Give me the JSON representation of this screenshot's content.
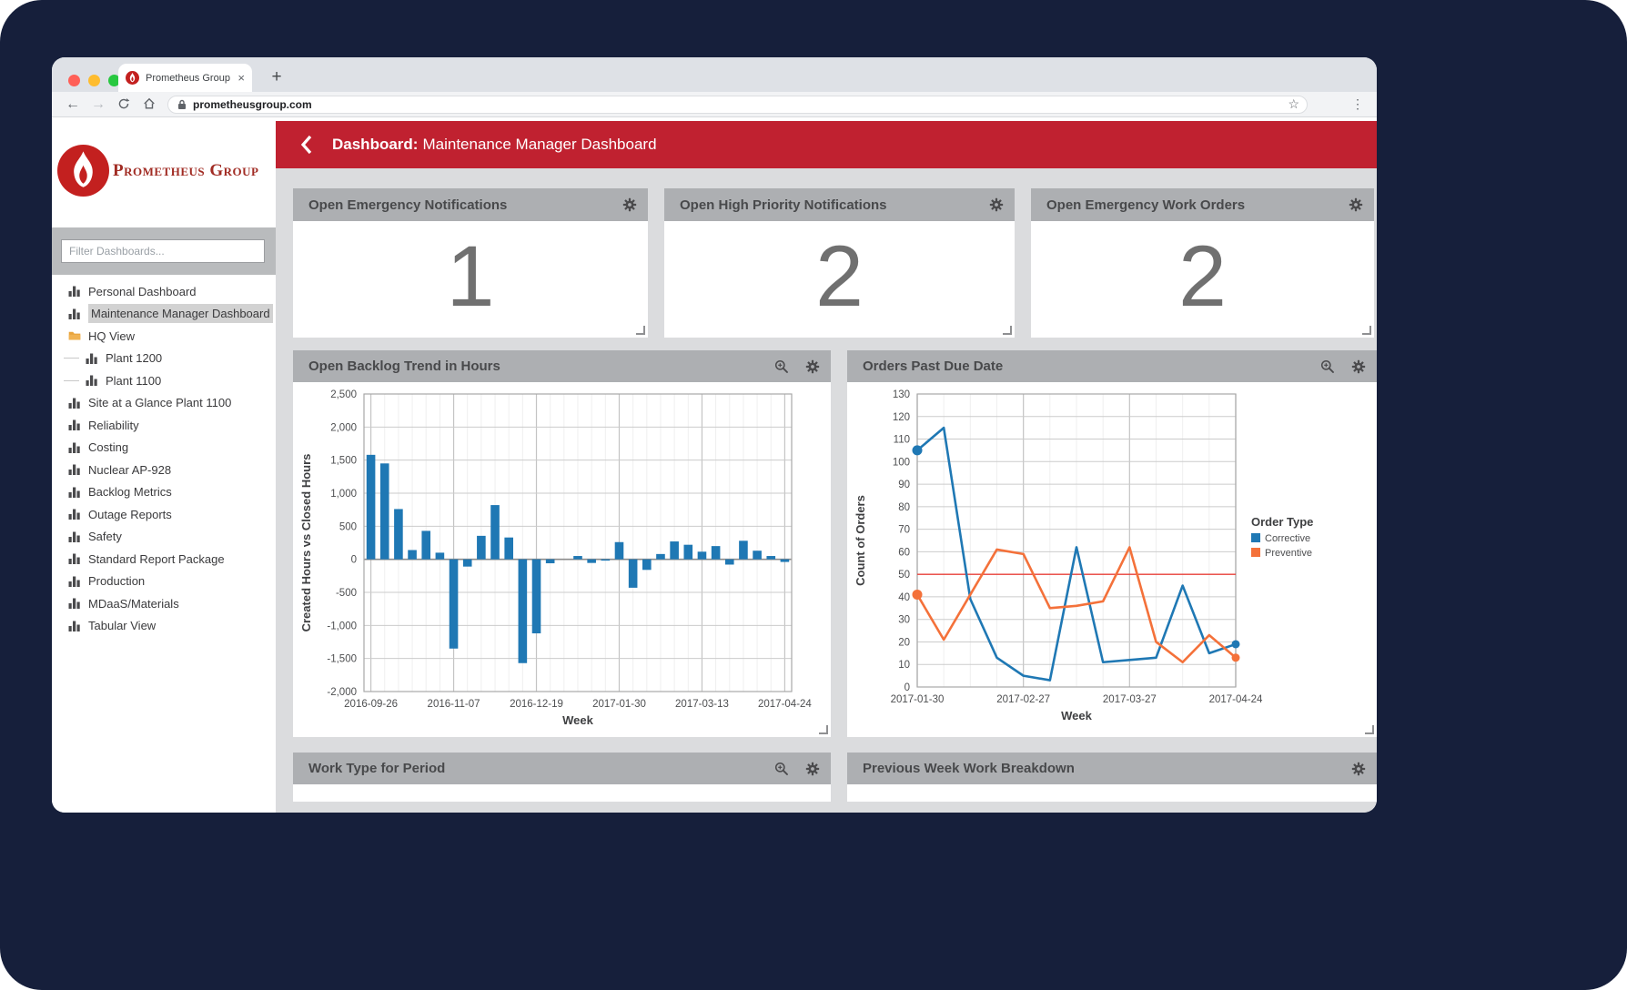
{
  "browser": {
    "tab_title": "Prometheus Group",
    "tab_close": "×",
    "new_tab": "+",
    "back_arrow": "←",
    "forward_arrow": "→",
    "url": "prometheusgroup.com",
    "star": "☆",
    "kebab": "⋮"
  },
  "header": {
    "title_prefix": "Dashboard:",
    "title": "Maintenance Manager Dashboard"
  },
  "sidebar": {
    "logo_text": "Prometheus Group",
    "filter_placeholder": "Filter Dashboards...",
    "items": [
      {
        "label": "Personal Dashboard",
        "icon": "bar-chart",
        "indent": false,
        "selected": false
      },
      {
        "label": "Maintenance Manager Dashboard",
        "icon": "bar-chart",
        "indent": false,
        "selected": true
      },
      {
        "label": "HQ View",
        "icon": "folder",
        "indent": false,
        "selected": false
      },
      {
        "label": "Plant 1200",
        "icon": "bar-chart",
        "indent": true,
        "selected": false
      },
      {
        "label": "Plant 1100",
        "icon": "bar-chart",
        "indent": true,
        "selected": false
      },
      {
        "label": "Site at a Glance Plant 1100",
        "icon": "bar-chart",
        "indent": false,
        "selected": false
      },
      {
        "label": "Reliability",
        "icon": "bar-chart",
        "indent": false,
        "selected": false
      },
      {
        "label": "Costing",
        "icon": "bar-chart",
        "indent": false,
        "selected": false
      },
      {
        "label": "Nuclear AP-928",
        "icon": "bar-chart",
        "indent": false,
        "selected": false
      },
      {
        "label": "Backlog Metrics",
        "icon": "bar-chart",
        "indent": false,
        "selected": false
      },
      {
        "label": "Outage Reports",
        "icon": "bar-chart",
        "indent": false,
        "selected": false
      },
      {
        "label": "Safety",
        "icon": "bar-chart",
        "indent": false,
        "selected": false
      },
      {
        "label": "Standard Report Package",
        "icon": "bar-chart",
        "indent": false,
        "selected": false
      },
      {
        "label": "Production",
        "icon": "bar-chart",
        "indent": false,
        "selected": false
      },
      {
        "label": "MDaaS/Materials",
        "icon": "bar-chart",
        "indent": false,
        "selected": false
      },
      {
        "label": "Tabular View",
        "icon": "bar-chart",
        "indent": false,
        "selected": false
      }
    ]
  },
  "kpis": [
    {
      "title": "Open Emergency Notifications",
      "value": "1"
    },
    {
      "title": "Open High Priority Notifications",
      "value": "2"
    },
    {
      "title": "Open Emergency Work Orders",
      "value": "2"
    }
  ],
  "panels": {
    "backlog_title": "Open Backlog Trend in Hours",
    "orders_title": "Orders Past Due Date",
    "bottom_left_title": "Work Type for Period",
    "bottom_right_title": "Previous Week Work Breakdown"
  },
  "colors": {
    "header_red": "#C02130",
    "panel_header_gray": "#ADAFB2",
    "corrective_blue": "#1F78B4",
    "preventive_orange": "#F4713A",
    "reference_red": "#E8403A",
    "logo_red": "#C3201F"
  },
  "chart_data": [
    {
      "id": "backlog",
      "type": "bar",
      "title": "Open Backlog Trend in Hours",
      "xlabel": "Week",
      "ylabel": "Created Hours vs Closed Hours",
      "ylim": [
        -2000,
        2500
      ],
      "ytick_step": 500,
      "grid": true,
      "bar_color": "#1F78B4",
      "x": [
        "2016-09-26",
        "2016-10-03",
        "2016-10-10",
        "2016-10-17",
        "2016-10-24",
        "2016-10-31",
        "2016-11-07",
        "2016-11-14",
        "2016-11-21",
        "2016-11-28",
        "2016-12-05",
        "2016-12-12",
        "2016-12-19",
        "2016-12-26",
        "2017-01-02",
        "2017-01-09",
        "2017-01-16",
        "2017-01-23",
        "2017-01-30",
        "2017-02-06",
        "2017-02-13",
        "2017-02-20",
        "2017-02-27",
        "2017-03-06",
        "2017-03-13",
        "2017-03-20",
        "2017-03-27",
        "2017-04-03",
        "2017-04-10",
        "2017-04-17",
        "2017-04-24"
      ],
      "values": [
        1580,
        1450,
        760,
        140,
        430,
        100,
        -1350,
        -110,
        355,
        820,
        330,
        -1570,
        -1120,
        -60,
        0,
        50,
        -55,
        -20,
        260,
        -430,
        -160,
        80,
        270,
        220,
        115,
        200,
        -80,
        280,
        130,
        50,
        -40
      ],
      "x_labels": [
        "2016-09-26",
        "2016-11-07",
        "2016-12-19",
        "2017-01-30",
        "2017-03-13",
        "2017-04-24"
      ],
      "label_slots": [
        0,
        6,
        12,
        18,
        24,
        30
      ]
    },
    {
      "id": "orders",
      "type": "line",
      "title": "Orders Past Due Date",
      "xlabel": "Week",
      "ylabel": "Count of Orders",
      "ylim": [
        0,
        130
      ],
      "ytick_step": 10,
      "grid": true,
      "x": [
        "2017-01-30",
        "2017-02-06",
        "2017-02-13",
        "2017-02-20",
        "2017-02-27",
        "2017-03-06",
        "2017-03-13",
        "2017-03-20",
        "2017-03-27",
        "2017-04-03",
        "2017-04-10",
        "2017-04-17",
        "2017-04-24"
      ],
      "series": [
        {
          "name": "Corrective",
          "color": "#1F78B4",
          "values": [
            105,
            115,
            39,
            13,
            5,
            3,
            62,
            11,
            12,
            13,
            45,
            15,
            19
          ]
        },
        {
          "name": "Preventive",
          "color": "#F4713A",
          "values": [
            41,
            21,
            41,
            61,
            59,
            35,
            36,
            38,
            62,
            20,
            11,
            23,
            13
          ]
        }
      ],
      "ref_line": {
        "value": 50,
        "color": "#E8403A"
      },
      "x_labels": [
        "2017-01-30",
        "2017-02-27",
        "2017-03-27",
        "2017-04-24"
      ],
      "label_slots": [
        0,
        4,
        8,
        12
      ],
      "legend": {
        "title": "Order Type",
        "position": "right"
      }
    }
  ]
}
